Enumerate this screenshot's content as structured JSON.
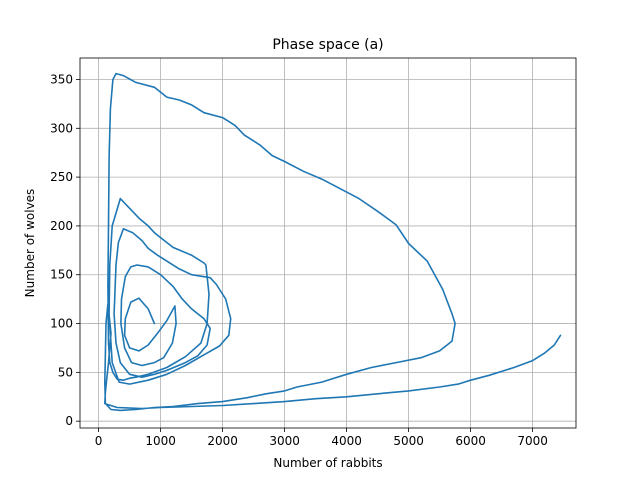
{
  "chart_data": {
    "type": "line",
    "title": "Phase space (a)",
    "xlabel": "Number of rabbits",
    "ylabel": "Number of wolves",
    "xlim": [
      -300,
      7700
    ],
    "ylim": [
      -7,
      372
    ],
    "xticks": [
      0,
      1000,
      2000,
      3000,
      4000,
      5000,
      6000,
      7000
    ],
    "yticks": [
      0,
      50,
      100,
      150,
      200,
      250,
      300,
      350
    ],
    "grid": true,
    "legend": "none",
    "series": [
      {
        "color": "#1f77b4",
        "points": [
          [
            900,
            100
          ],
          [
            800,
            115
          ],
          [
            650,
            126
          ],
          [
            520,
            122
          ],
          [
            430,
            105
          ],
          [
            420,
            88
          ],
          [
            500,
            75
          ],
          [
            650,
            72
          ],
          [
            800,
            78
          ],
          [
            950,
            90
          ],
          [
            1100,
            103
          ],
          [
            1230,
            118
          ],
          [
            1250,
            100
          ],
          [
            1190,
            80
          ],
          [
            1050,
            65
          ],
          [
            900,
            60
          ],
          [
            700,
            57
          ],
          [
            530,
            60
          ],
          [
            420,
            75
          ],
          [
            360,
            100
          ],
          [
            370,
            125
          ],
          [
            430,
            148
          ],
          [
            520,
            158
          ],
          [
            620,
            160
          ],
          [
            800,
            158
          ],
          [
            1000,
            150
          ],
          [
            1200,
            138
          ],
          [
            1350,
            125
          ],
          [
            1500,
            115
          ],
          [
            1700,
            105
          ],
          [
            1800,
            95
          ],
          [
            1750,
            78
          ],
          [
            1600,
            67
          ],
          [
            1400,
            60
          ],
          [
            1100,
            52
          ],
          [
            900,
            48
          ],
          [
            700,
            45
          ],
          [
            500,
            48
          ],
          [
            350,
            60
          ],
          [
            280,
            80
          ],
          [
            250,
            110
          ],
          [
            280,
            160
          ],
          [
            320,
            183
          ],
          [
            400,
            197
          ],
          [
            550,
            193
          ],
          [
            700,
            185
          ],
          [
            800,
            177
          ],
          [
            950,
            170
          ],
          [
            1100,
            164
          ],
          [
            1300,
            156
          ],
          [
            1500,
            150
          ],
          [
            1800,
            147
          ],
          [
            1900,
            140
          ],
          [
            2050,
            125
          ],
          [
            2130,
            105
          ],
          [
            2100,
            88
          ],
          [
            1950,
            77
          ],
          [
            1700,
            68
          ],
          [
            1400,
            57
          ],
          [
            1100,
            48
          ],
          [
            800,
            42
          ],
          [
            500,
            38
          ],
          [
            330,
            40
          ],
          [
            220,
            60
          ],
          [
            170,
            110
          ],
          [
            180,
            160
          ],
          [
            220,
            200
          ],
          [
            350,
            228
          ],
          [
            500,
            218
          ],
          [
            650,
            208
          ],
          [
            800,
            200
          ],
          [
            900,
            193
          ],
          [
            1000,
            188
          ],
          [
            1200,
            178
          ],
          [
            1500,
            170
          ],
          [
            1700,
            162
          ],
          [
            1730,
            160
          ],
          [
            1780,
            130
          ],
          [
            1750,
            100
          ],
          [
            1650,
            80
          ],
          [
            1400,
            66
          ],
          [
            1100,
            55
          ],
          [
            800,
            48
          ],
          [
            600,
            45
          ],
          [
            500,
            44
          ],
          [
            400,
            42
          ],
          [
            300,
            43
          ],
          [
            230,
            50
          ],
          [
            180,
            60
          ],
          [
            160,
            80
          ],
          [
            150,
            140
          ],
          [
            160,
            200
          ],
          [
            170,
            270
          ],
          [
            190,
            320
          ],
          [
            230,
            350
          ],
          [
            280,
            356
          ],
          [
            400,
            354
          ],
          [
            600,
            347
          ],
          [
            900,
            342
          ],
          [
            1100,
            332
          ],
          [
            1300,
            329
          ],
          [
            1500,
            324
          ],
          [
            1700,
            316
          ],
          [
            2000,
            311
          ],
          [
            2200,
            303
          ],
          [
            2350,
            293
          ],
          [
            2600,
            283
          ],
          [
            2800,
            272
          ],
          [
            3000,
            266
          ],
          [
            3300,
            256
          ],
          [
            3600,
            248
          ],
          [
            3900,
            238
          ],
          [
            4200,
            228
          ],
          [
            4500,
            215
          ],
          [
            4800,
            201
          ],
          [
            5000,
            182
          ],
          [
            5300,
            164
          ],
          [
            5550,
            135
          ],
          [
            5700,
            110
          ],
          [
            5750,
            100
          ],
          [
            5700,
            82
          ],
          [
            5500,
            72
          ],
          [
            5200,
            65
          ],
          [
            4800,
            60
          ],
          [
            4400,
            55
          ],
          [
            4000,
            48
          ],
          [
            3600,
            40
          ],
          [
            3200,
            35
          ],
          [
            3000,
            31
          ],
          [
            2700,
            28
          ],
          [
            2400,
            24
          ],
          [
            2000,
            20
          ],
          [
            1600,
            18
          ],
          [
            1200,
            15
          ],
          [
            900,
            14
          ],
          [
            600,
            12
          ],
          [
            350,
            11
          ],
          [
            200,
            12
          ],
          [
            110,
            18
          ],
          [
            100,
            40
          ],
          [
            110,
            70
          ],
          [
            120,
            100
          ],
          [
            150,
            120
          ],
          [
            200,
            90
          ],
          [
            160,
            60
          ],
          [
            110,
            30
          ],
          [
            100,
            18
          ],
          [
            300,
            14
          ],
          [
            700,
            13
          ],
          [
            1000,
            14
          ],
          [
            1500,
            15
          ],
          [
            2000,
            16
          ],
          [
            2500,
            18
          ],
          [
            3000,
            20
          ],
          [
            3500,
            23
          ],
          [
            4000,
            25
          ],
          [
            4500,
            28
          ],
          [
            5000,
            31
          ],
          [
            5500,
            35
          ],
          [
            5800,
            38
          ],
          [
            6000,
            42
          ],
          [
            6300,
            47
          ],
          [
            6700,
            55
          ],
          [
            7000,
            62
          ],
          [
            7200,
            70
          ],
          [
            7350,
            78
          ],
          [
            7450,
            88
          ]
        ]
      }
    ]
  }
}
